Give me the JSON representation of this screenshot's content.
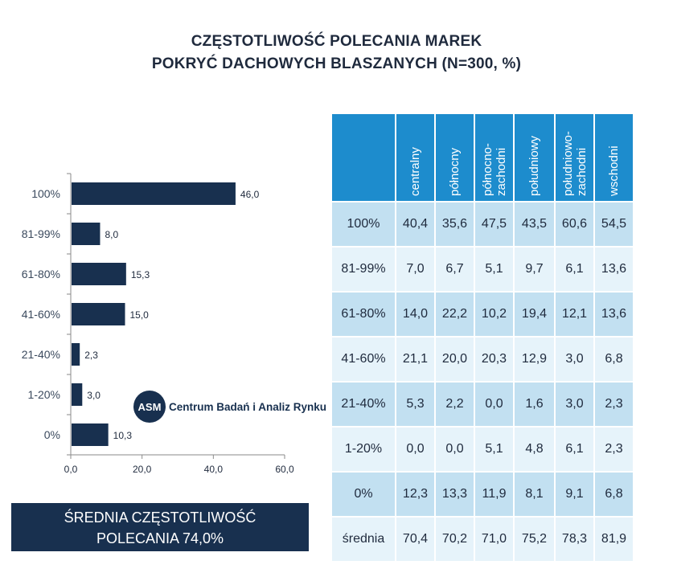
{
  "title": {
    "line1": "CZĘSTOTLIWOŚĆ POLECANIA MAREK",
    "line2": "POKRYĆ DACHOWYCH BLASZANYCH (N=300, %)"
  },
  "chart_data": {
    "type": "bar",
    "orientation": "horizontal",
    "categories": [
      "100%",
      "81-99%",
      "61-80%",
      "41-60%",
      "21-40%",
      "1-20%",
      "0%"
    ],
    "values": [
      46.0,
      8.0,
      15.3,
      15.0,
      2.3,
      3.0,
      10.3
    ],
    "value_labels": [
      "46,0",
      "8,0",
      "15,3",
      "15,0",
      "2,3",
      "3,0",
      "10,3"
    ],
    "xlim": [
      0,
      60
    ],
    "xticks": [
      0,
      20,
      40,
      60
    ],
    "xtick_labels": [
      "0,0",
      "20,0",
      "40,0",
      "60,0"
    ],
    "bar_color": "#18304f",
    "grid": false
  },
  "summary": {
    "line1": "ŚREDNIA CZĘSTOTLIWOŚĆ",
    "line2": "POLECANIA 74,0%"
  },
  "logo": {
    "mark": "ASM",
    "text": "Centrum Badań i Analiz Rynku"
  },
  "table": {
    "columns": [
      "centralny",
      "północny",
      "północno-\nzachodni",
      "południowy",
      "południowo-\nzachodni",
      "wschodni"
    ],
    "rows": [
      {
        "label": "100%",
        "values": [
          "40,4",
          "35,6",
          "47,5",
          "43,5",
          "60,6",
          "54,5"
        ]
      },
      {
        "label": "81-99%",
        "values": [
          "7,0",
          "6,7",
          "5,1",
          "9,7",
          "6,1",
          "13,6"
        ]
      },
      {
        "label": "61-80%",
        "values": [
          "14,0",
          "22,2",
          "10,2",
          "19,4",
          "12,1",
          "13,6"
        ]
      },
      {
        "label": "41-60%",
        "values": [
          "21,1",
          "20,0",
          "20,3",
          "12,9",
          "3,0",
          "6,8"
        ]
      },
      {
        "label": "21-40%",
        "values": [
          "5,3",
          "2,2",
          "0,0",
          "1,6",
          "3,0",
          "2,3"
        ]
      },
      {
        "label": "1-20%",
        "values": [
          "0,0",
          "0,0",
          "5,1",
          "4,8",
          "6,1",
          "2,3"
        ]
      },
      {
        "label": "0%",
        "values": [
          "12,3",
          "13,3",
          "11,9",
          "8,1",
          "9,1",
          "6,8"
        ]
      },
      {
        "label": "średnia",
        "values": [
          "70,4",
          "70,2",
          "71,0",
          "75,2",
          "78,3",
          "81,9"
        ]
      }
    ]
  },
  "colors": {
    "header_blue": "#1d8ccd",
    "row_dark": "#c2e0f1",
    "row_light": "#e6f3fa",
    "navy": "#18304f"
  }
}
